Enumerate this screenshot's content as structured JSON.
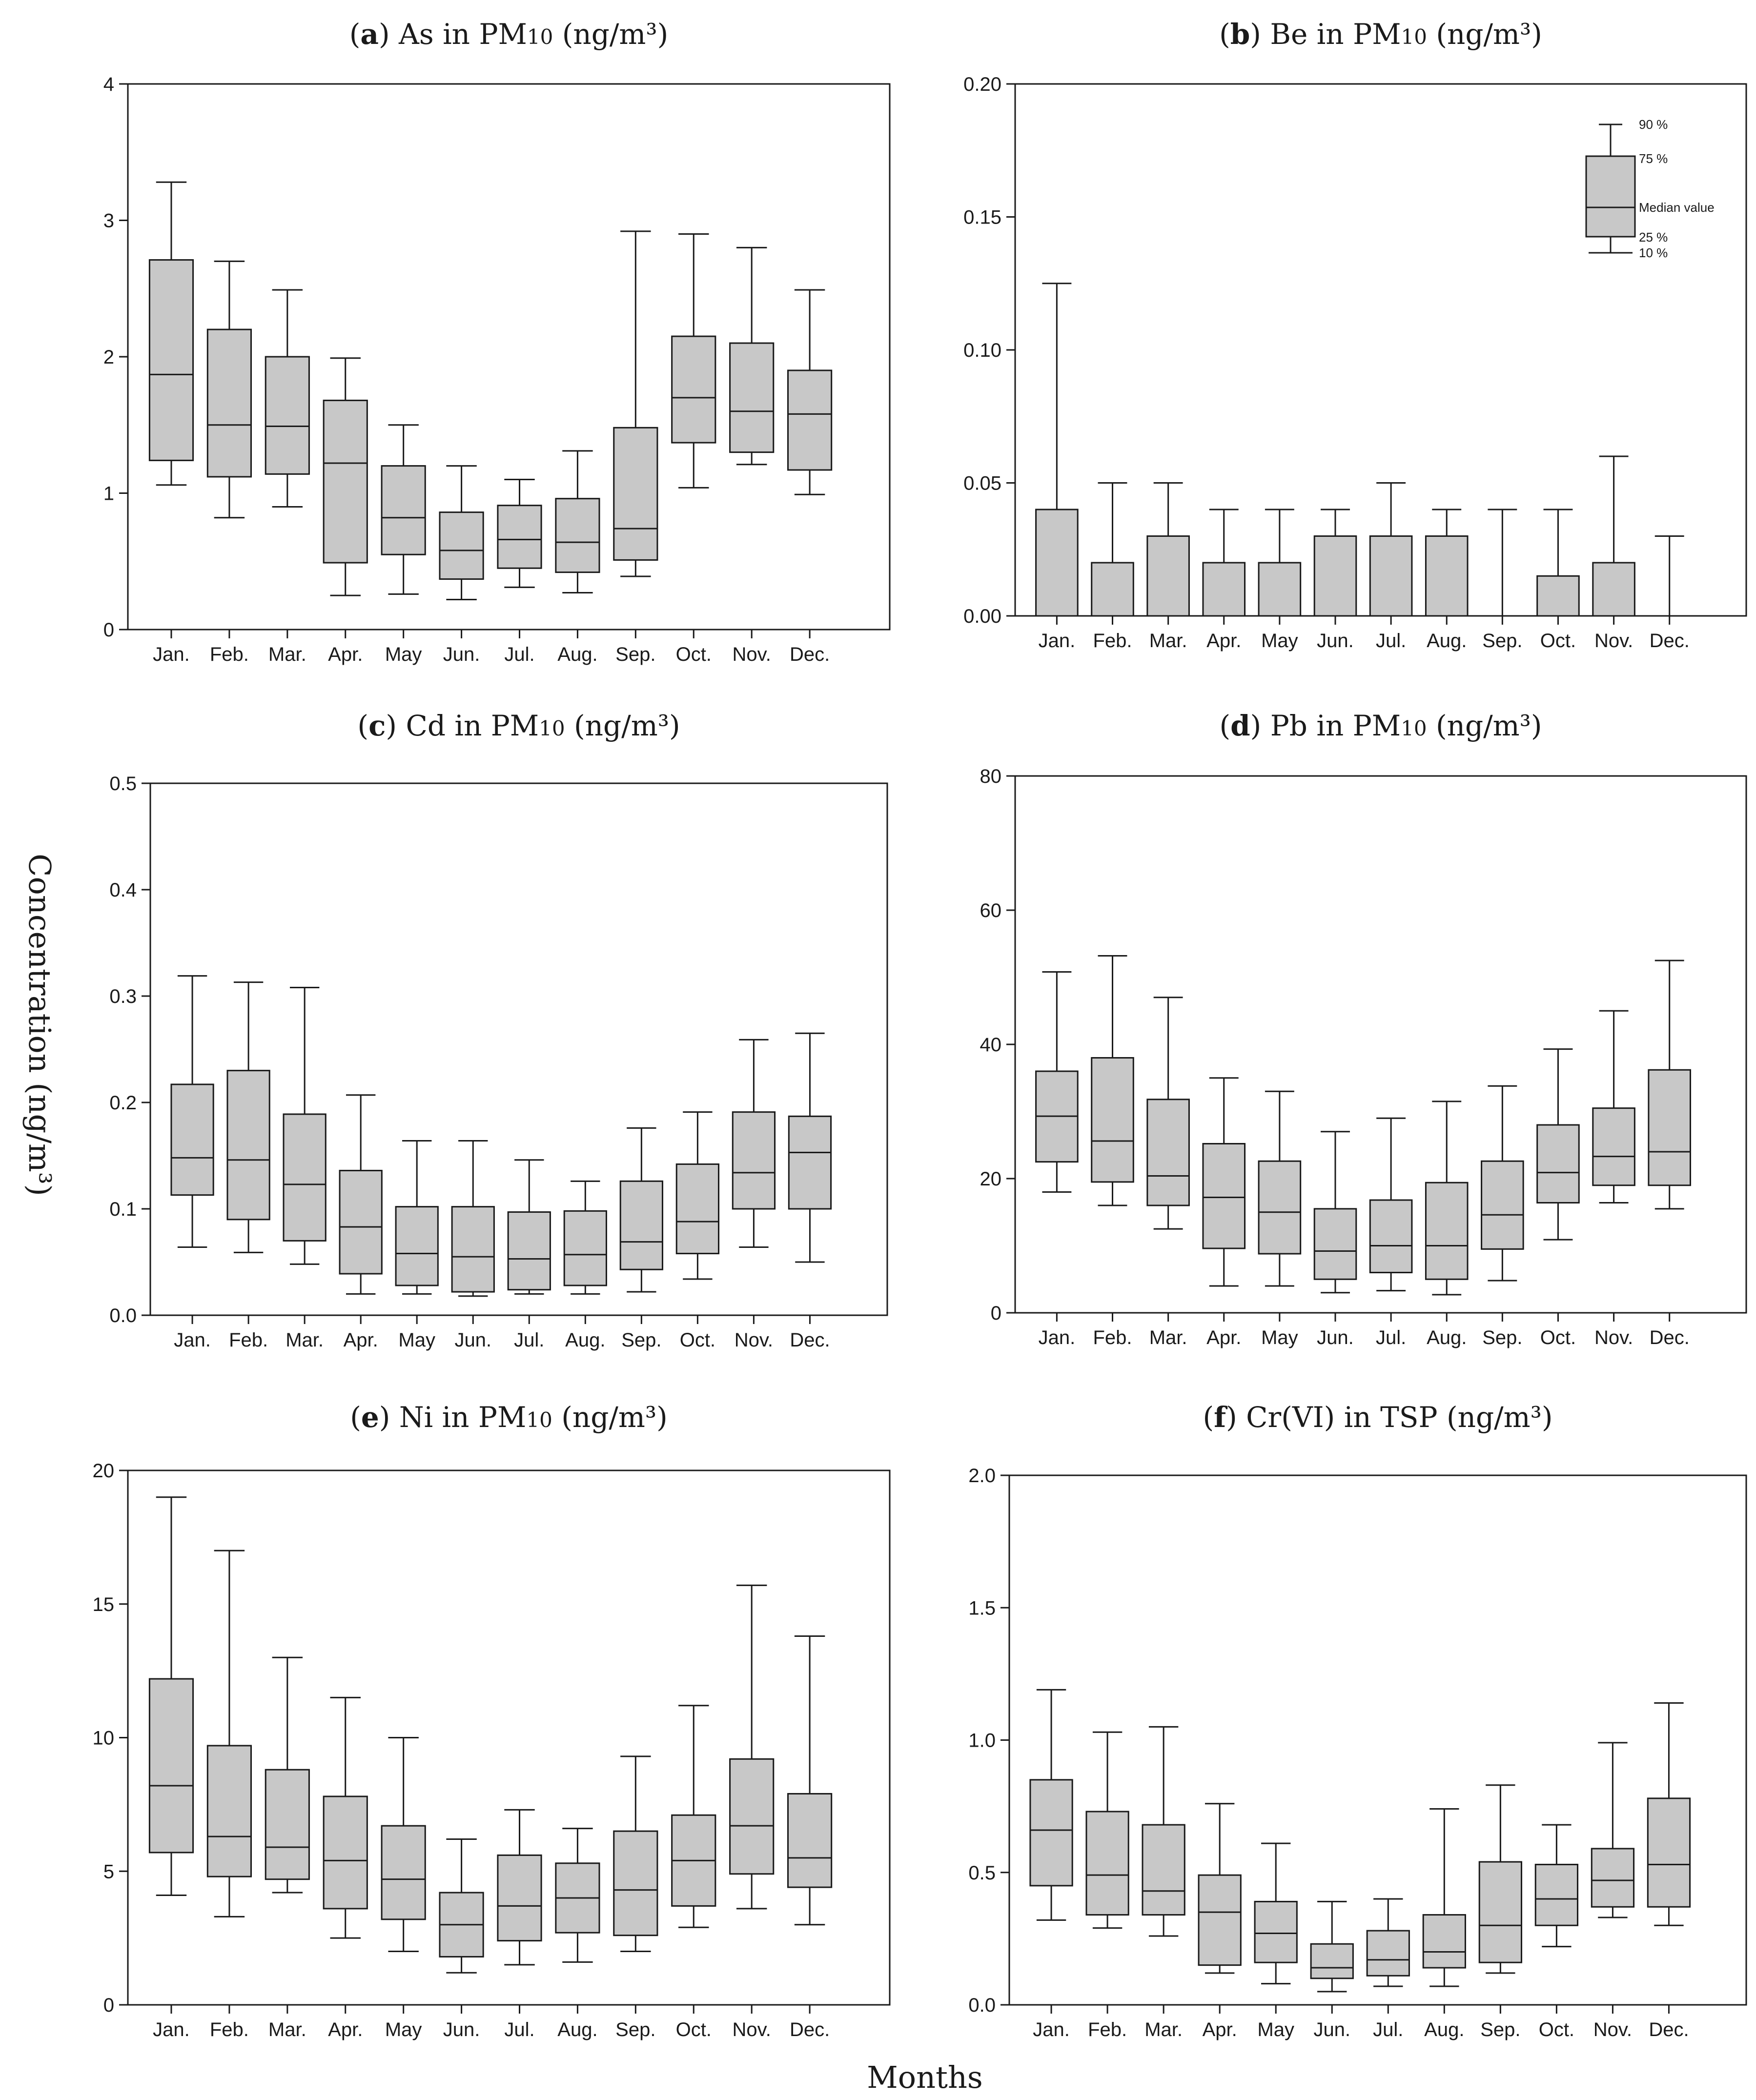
{
  "figure": {
    "ylabel": "Concentration (ng/m³)",
    "xlabel": "Months"
  },
  "chart_data": [
    {
      "type": "box",
      "panel": "a",
      "title": {
        "letter": "a",
        "pre": "As in PM",
        "sub": "10",
        "post": " (ng/m³)"
      },
      "categories": [
        "Jan.",
        "Feb.",
        "Mar.",
        "Apr.",
        "May",
        "Jun.",
        "Jul.",
        "Aug.",
        "Sep.",
        "Oct.",
        "Nov.",
        "Dec."
      ],
      "ylim": [
        0,
        4
      ],
      "yticks": [
        "0",
        "1",
        "2",
        "3",
        "4"
      ],
      "stats": {
        "p10": [
          1.06,
          0.82,
          0.9,
          0.25,
          0.26,
          0.22,
          0.31,
          0.27,
          0.39,
          1.04,
          1.21,
          0.99
        ],
        "p25": [
          1.24,
          1.12,
          1.14,
          0.49,
          0.55,
          0.37,
          0.45,
          0.42,
          0.51,
          1.37,
          1.3,
          1.17
        ],
        "median": [
          1.87,
          1.5,
          1.49,
          1.22,
          0.82,
          0.58,
          0.66,
          0.64,
          0.74,
          1.7,
          1.6,
          1.58
        ],
        "p75": [
          2.71,
          2.2,
          2.0,
          1.68,
          1.2,
          0.86,
          0.91,
          0.96,
          1.48,
          2.15,
          2.1,
          1.9
        ],
        "p90": [
          3.28,
          2.7,
          2.49,
          1.99,
          1.5,
          1.2,
          1.1,
          1.31,
          2.92,
          2.9,
          2.8,
          2.49
        ]
      }
    },
    {
      "type": "box",
      "panel": "b",
      "title": {
        "letter": "b",
        "pre": "Be in PM",
        "sub": "10",
        "post": " (ng/m³)"
      },
      "categories": [
        "Jan.",
        "Feb.",
        "Mar.",
        "Apr.",
        "May",
        "Jun.",
        "Jul.",
        "Aug.",
        "Sep.",
        "Oct.",
        "Nov.",
        "Dec."
      ],
      "ylim": [
        0,
        0.2
      ],
      "yticks": [
        "0.00",
        "0.05",
        "0.10",
        "0.15",
        "0.20"
      ],
      "stats": {
        "p10": [
          0,
          0,
          0,
          0,
          0,
          0,
          0,
          0,
          0,
          0,
          0,
          0
        ],
        "p25": [
          0,
          0,
          0,
          0,
          0,
          0,
          0,
          0,
          0,
          0,
          0,
          0
        ],
        "median": [
          0,
          0,
          0,
          0,
          0,
          0,
          0,
          0,
          0,
          0,
          0,
          0
        ],
        "p75": [
          0.04,
          0.02,
          0.03,
          0.02,
          0.02,
          0.03,
          0.03,
          0.03,
          0,
          0.015,
          0.02,
          0
        ],
        "p90": [
          0.125,
          0.05,
          0.05,
          0.04,
          0.04,
          0.04,
          0.05,
          0.04,
          0.04,
          0.04,
          0.06,
          0.03
        ]
      },
      "legend": {
        "p90": "90 %",
        "p75": "75 %",
        "median": "Median value",
        "p25": "25 %",
        "p10": "10 %"
      }
    },
    {
      "type": "box",
      "panel": "c",
      "title": {
        "letter": "c",
        "pre": "Cd in PM",
        "sub": "10",
        "post": " (ng/m³)"
      },
      "categories": [
        "Jan.",
        "Feb.",
        "Mar.",
        "Apr.",
        "May",
        "Jun.",
        "Jul.",
        "Aug.",
        "Sep.",
        "Oct.",
        "Nov.",
        "Dec."
      ],
      "ylim": [
        0,
        0.5
      ],
      "yticks": [
        "0.0",
        "0.1",
        "0.2",
        "0.3",
        "0.4",
        "0.5"
      ],
      "stats": {
        "p10": [
          0.064,
          0.059,
          0.048,
          0.02,
          0.02,
          0.018,
          0.02,
          0.02,
          0.022,
          0.034,
          0.064,
          0.05
        ],
        "p25": [
          0.113,
          0.09,
          0.07,
          0.039,
          0.028,
          0.022,
          0.024,
          0.028,
          0.043,
          0.058,
          0.1,
          0.1
        ],
        "median": [
          0.148,
          0.146,
          0.123,
          0.083,
          0.058,
          0.055,
          0.053,
          0.057,
          0.069,
          0.088,
          0.134,
          0.153
        ],
        "p75": [
          0.217,
          0.23,
          0.189,
          0.136,
          0.102,
          0.102,
          0.097,
          0.098,
          0.126,
          0.142,
          0.191,
          0.187
        ],
        "p90": [
          0.319,
          0.313,
          0.308,
          0.207,
          0.164,
          0.164,
          0.146,
          0.126,
          0.176,
          0.191,
          0.259,
          0.265
        ]
      }
    },
    {
      "type": "box",
      "panel": "d",
      "title": {
        "letter": "d",
        "pre": "Pb in PM",
        "sub": "10",
        "post": " (ng/m³)"
      },
      "categories": [
        "Jan.",
        "Feb.",
        "Mar.",
        "Apr.",
        "May",
        "Jun.",
        "Jul.",
        "Aug.",
        "Sep.",
        "Oct.",
        "Nov.",
        "Dec."
      ],
      "ylim": [
        0,
        80
      ],
      "yticks": [
        "0",
        "20",
        "40",
        "60",
        "80"
      ],
      "stats": {
        "p10": [
          18.0,
          16.0,
          12.5,
          4.0,
          4.0,
          3.0,
          3.3,
          2.7,
          4.8,
          10.9,
          16.4,
          15.5
        ],
        "p25": [
          22.5,
          19.5,
          16.0,
          9.6,
          8.8,
          5.0,
          6.0,
          5.0,
          9.5,
          16.4,
          19.0,
          19.0
        ],
        "median": [
          29.3,
          25.6,
          20.4,
          17.2,
          15.0,
          9.2,
          10.0,
          10.0,
          14.6,
          20.9,
          23.3,
          24.0
        ],
        "p75": [
          36.0,
          38.0,
          31.8,
          25.2,
          22.6,
          15.5,
          16.8,
          19.4,
          22.6,
          28.0,
          30.5,
          36.2
        ],
        "p90": [
          50.8,
          53.2,
          47.0,
          35.0,
          33.0,
          27.0,
          29.0,
          31.5,
          33.8,
          39.3,
          45.0,
          52.5
        ]
      }
    },
    {
      "type": "box",
      "panel": "e",
      "title": {
        "letter": "e",
        "pre": "Ni in PM",
        "sub": "10",
        "post": " (ng/m³)"
      },
      "categories": [
        "Jan.",
        "Feb.",
        "Mar.",
        "Apr.",
        "May",
        "Jun.",
        "Jul.",
        "Aug.",
        "Sep.",
        "Oct.",
        "Nov.",
        "Dec."
      ],
      "ylim": [
        0,
        20
      ],
      "yticks": [
        "0",
        "5",
        "10",
        "15",
        "20"
      ],
      "stats": {
        "p10": [
          4.1,
          3.3,
          4.2,
          2.5,
          2.0,
          1.2,
          1.5,
          1.6,
          2.0,
          2.9,
          3.6,
          3.0
        ],
        "p25": [
          5.7,
          4.8,
          4.7,
          3.6,
          3.2,
          1.8,
          2.4,
          2.7,
          2.6,
          3.7,
          4.9,
          4.4
        ],
        "median": [
          8.2,
          6.3,
          5.9,
          5.4,
          4.7,
          3.0,
          3.7,
          4.0,
          4.3,
          5.4,
          6.7,
          5.5
        ],
        "p75": [
          12.2,
          9.7,
          8.8,
          7.8,
          6.7,
          4.2,
          5.6,
          5.3,
          6.5,
          7.1,
          9.2,
          7.9
        ],
        "p90": [
          19.0,
          17.0,
          13.0,
          11.5,
          10.0,
          6.2,
          7.3,
          6.6,
          9.3,
          11.2,
          15.7,
          13.8
        ]
      }
    },
    {
      "type": "box",
      "panel": "f",
      "title": {
        "letter": "f",
        "pre": "Cr(VI) in TSP",
        "sub": "",
        "post": " (ng/m³)"
      },
      "categories": [
        "Jan.",
        "Feb.",
        "Mar.",
        "Apr.",
        "May",
        "Jun.",
        "Jul.",
        "Aug.",
        "Sep.",
        "Oct.",
        "Nov.",
        "Dec."
      ],
      "ylim": [
        0,
        2
      ],
      "yticks": [
        "0.0",
        "0.5",
        "1.0",
        "1.5",
        "2.0"
      ],
      "stats": {
        "p10": [
          0.32,
          0.29,
          0.26,
          0.12,
          0.08,
          0.05,
          0.07,
          0.07,
          0.12,
          0.22,
          0.33,
          0.3
        ],
        "p25": [
          0.45,
          0.34,
          0.34,
          0.15,
          0.16,
          0.1,
          0.11,
          0.14,
          0.16,
          0.3,
          0.37,
          0.37
        ],
        "median": [
          0.66,
          0.49,
          0.43,
          0.35,
          0.27,
          0.14,
          0.17,
          0.2,
          0.3,
          0.4,
          0.47,
          0.53
        ],
        "p75": [
          0.85,
          0.73,
          0.68,
          0.49,
          0.39,
          0.23,
          0.28,
          0.34,
          0.54,
          0.53,
          0.59,
          0.78
        ],
        "p90": [
          1.19,
          1.03,
          1.05,
          0.76,
          0.61,
          0.39,
          0.4,
          0.74,
          0.83,
          0.68,
          0.99,
          1.14
        ]
      }
    }
  ]
}
